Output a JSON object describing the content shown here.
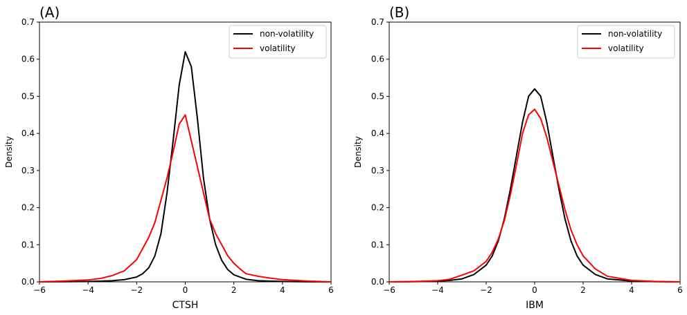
{
  "chart_data": [
    {
      "type": "line",
      "panel_label": "(A)",
      "xlabel": "CTSH",
      "ylabel": "Density",
      "xlim": [
        -6,
        6
      ],
      "ylim": [
        0,
        0.7
      ],
      "xticks": [
        -6,
        -4,
        -2,
        0,
        2,
        4,
        6
      ],
      "yticks": [
        0.0,
        0.1,
        0.2,
        0.3,
        0.4,
        0.5,
        0.6,
        0.7
      ],
      "xtick_labels": [
        "−6",
        "−4",
        "−2",
        "0",
        "2",
        "4",
        "6"
      ],
      "ytick_labels": [
        "0.0",
        "0.1",
        "0.2",
        "0.3",
        "0.4",
        "0.5",
        "0.6",
        "0.7"
      ],
      "grid": false,
      "legend_position": "top-right",
      "series": [
        {
          "name": "non-volatility",
          "color": "#000000",
          "x": [
            -6,
            -5,
            -4,
            -3,
            -2.5,
            -2,
            -1.75,
            -1.5,
            -1.25,
            -1,
            -0.75,
            -0.5,
            -0.25,
            0,
            0.25,
            0.5,
            0.75,
            1,
            1.25,
            1.5,
            1.75,
            2,
            2.5,
            3,
            4,
            5,
            6
          ],
          "y": [
            0,
            0.0005,
            0.001,
            0.003,
            0.006,
            0.013,
            0.022,
            0.038,
            0.07,
            0.13,
            0.24,
            0.38,
            0.53,
            0.62,
            0.58,
            0.44,
            0.28,
            0.17,
            0.1,
            0.058,
            0.033,
            0.019,
            0.007,
            0.003,
            0.001,
            0.0003,
            0
          ]
        },
        {
          "name": "volatility",
          "color": "#ff0000",
          "x": [
            -6,
            -5,
            -4,
            -3.5,
            -3,
            -2.5,
            -2,
            -1.75,
            -1.5,
            -1.25,
            -1,
            -0.75,
            -0.5,
            -0.25,
            0,
            0.25,
            0.5,
            0.75,
            1,
            1.25,
            1.5,
            1.75,
            2,
            2.25,
            2.5,
            3,
            3.5,
            4,
            5,
            6
          ],
          "y": [
            0,
            0.002,
            0.005,
            0.009,
            0.017,
            0.03,
            0.06,
            0.09,
            0.12,
            0.16,
            0.22,
            0.28,
            0.35,
            0.425,
            0.45,
            0.38,
            0.31,
            0.24,
            0.17,
            0.13,
            0.1,
            0.07,
            0.05,
            0.035,
            0.022,
            0.015,
            0.01,
            0.006,
            0.002,
            0
          ]
        }
      ]
    },
    {
      "type": "line",
      "panel_label": "(B)",
      "xlabel": "IBM",
      "ylabel": "Density",
      "xlim": [
        -6,
        6
      ],
      "ylim": [
        0,
        0.7
      ],
      "xticks": [
        -6,
        -4,
        -2,
        0,
        2,
        4,
        6
      ],
      "yticks": [
        0.0,
        0.1,
        0.2,
        0.3,
        0.4,
        0.5,
        0.6,
        0.7
      ],
      "xtick_labels": [
        "−6",
        "−4",
        "−2",
        "0",
        "2",
        "4",
        "6"
      ],
      "ytick_labels": [
        "0.0",
        "0.1",
        "0.2",
        "0.3",
        "0.4",
        "0.5",
        "0.6",
        "0.7"
      ],
      "grid": false,
      "legend_position": "top-right",
      "series": [
        {
          "name": "non-volatility",
          "color": "#000000",
          "x": [
            -6,
            -5,
            -4,
            -3.5,
            -3,
            -2.5,
            -2,
            -1.75,
            -1.5,
            -1.25,
            -1,
            -0.75,
            -0.5,
            -0.25,
            0,
            0.25,
            0.5,
            0.75,
            1,
            1.25,
            1.5,
            1.75,
            2,
            2.5,
            3,
            4,
            5,
            6
          ],
          "y": [
            0,
            0.0005,
            0.002,
            0.004,
            0.008,
            0.02,
            0.045,
            0.07,
            0.11,
            0.17,
            0.25,
            0.34,
            0.43,
            0.5,
            0.52,
            0.5,
            0.43,
            0.34,
            0.25,
            0.17,
            0.11,
            0.07,
            0.045,
            0.02,
            0.008,
            0.002,
            0.0005,
            0
          ]
        },
        {
          "name": "volatility",
          "color": "#ff0000",
          "x": [
            -6,
            -5,
            -4,
            -3.5,
            -3,
            -2.5,
            -2,
            -1.75,
            -1.5,
            -1.25,
            -1,
            -0.75,
            -0.5,
            -0.25,
            0,
            0.25,
            0.5,
            0.75,
            1,
            1.25,
            1.5,
            1.75,
            2,
            2.5,
            3,
            4,
            5,
            6
          ],
          "y": [
            0,
            0.001,
            0.003,
            0.007,
            0.018,
            0.03,
            0.055,
            0.08,
            0.115,
            0.165,
            0.235,
            0.315,
            0.4,
            0.45,
            0.465,
            0.44,
            0.39,
            0.325,
            0.26,
            0.195,
            0.14,
            0.1,
            0.07,
            0.035,
            0.015,
            0.004,
            0.001,
            0
          ]
        }
      ]
    }
  ]
}
